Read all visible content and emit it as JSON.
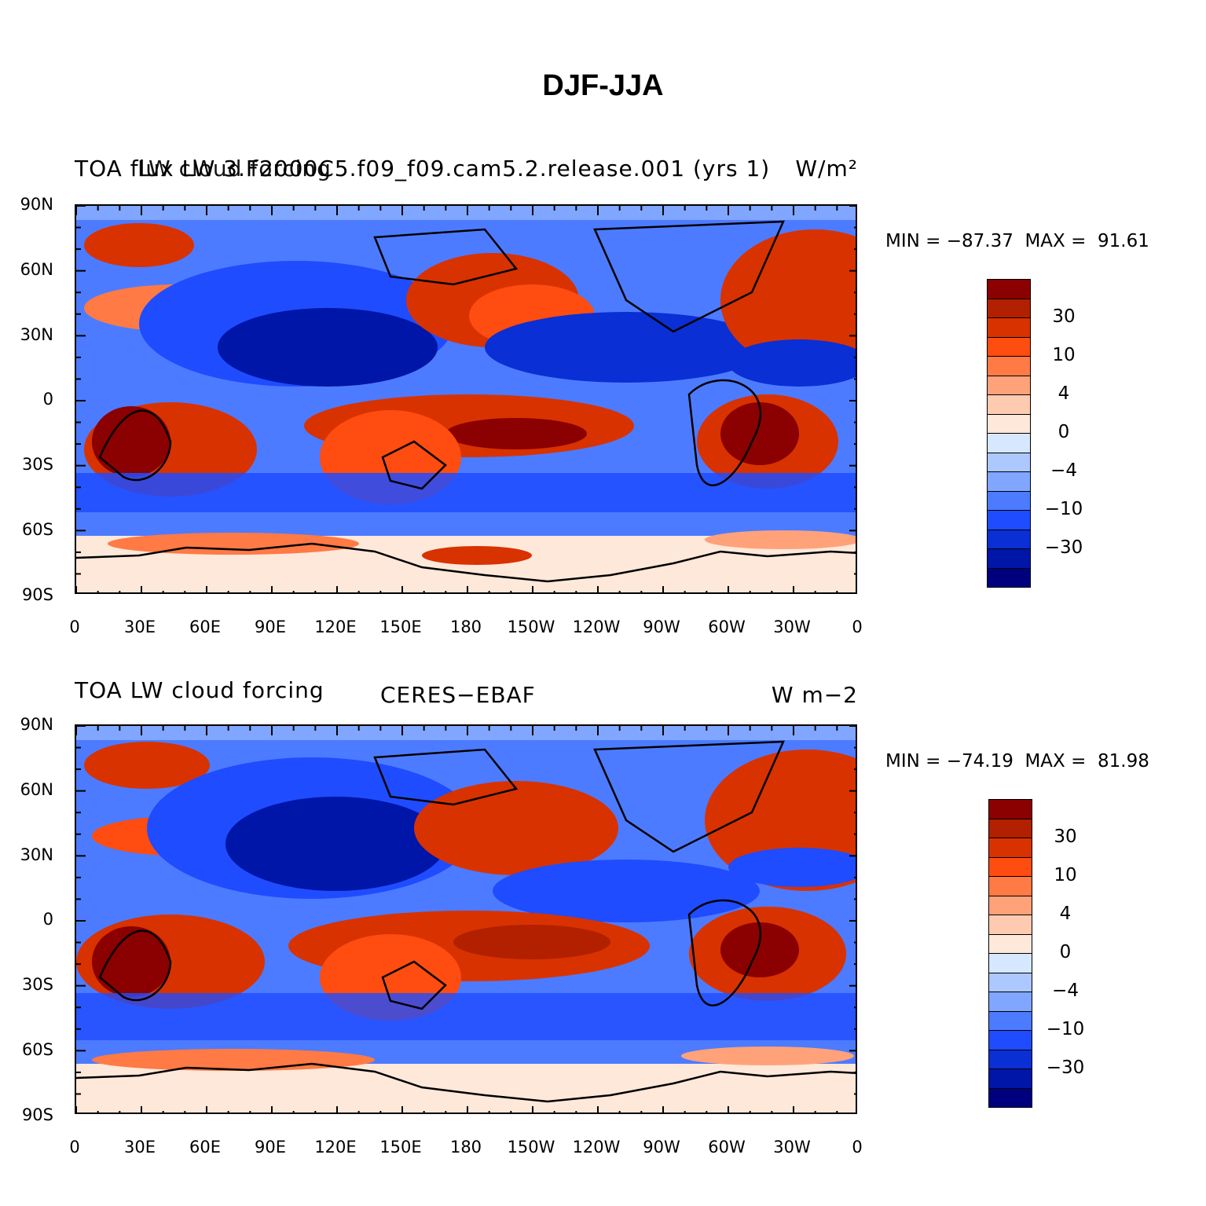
{
  "figure": {
    "title": "DJF-JJA"
  },
  "panels": [
    {
      "id": "model",
      "left_title": "TOA flux LW 3.F2000C5.f09_f09.cam5.2.release.001 (yrs 1)",
      "left_title_overlap": "LW cloud forcing",
      "center_title": "",
      "right_title": "W/m²",
      "stats_text": "MIN = −87.37  MAX =  91.61",
      "min": -87.37,
      "max": 91.61
    },
    {
      "id": "obs",
      "left_title": "TOA LW cloud forcing",
      "left_title_overlap": "",
      "center_title": "CERES−EBAF",
      "right_title": "W m−2",
      "stats_text": "MIN = −74.19  MAX =  81.98",
      "min": -74.19,
      "max": 81.98
    }
  ],
  "axes": {
    "y_labels": [
      "90N",
      "60N",
      "30N",
      "0",
      "30S",
      "60S",
      "90S"
    ],
    "x_labels": [
      "0",
      "30E",
      "60E",
      "90E",
      "120E",
      "150E",
      "180",
      "150W",
      "120W",
      "90W",
      "60W",
      "30W",
      "0"
    ]
  },
  "colorbar": {
    "colors": [
      "#8b0000",
      "#b22000",
      "#d83200",
      "#ff4c10",
      "#ff7a45",
      "#ffa27a",
      "#ffcbb0",
      "#fde8da",
      "#d6e8ff",
      "#adc8ff",
      "#80a6ff",
      "#4d7bff",
      "#1f4cff",
      "#0a2fd4",
      "#0016a8",
      "#00007f"
    ],
    "labels": [
      "30",
      "10",
      "4",
      "0",
      "−4",
      "−10",
      "−30"
    ]
  },
  "chart_data": {
    "type": "heatmap",
    "projection": "cylindrical equidistant, 0–360 longitude",
    "variable": "TOA LW cloud forcing, DJF minus JJA seasonal difference",
    "units": "W/m²",
    "contour_levels": [
      -50,
      -40,
      -30,
      -20,
      -10,
      -6,
      -4,
      -2,
      0,
      2,
      4,
      6,
      10,
      20,
      30,
      40,
      50
    ],
    "lat_range": [
      -90,
      90
    ],
    "lon_range": [
      0,
      360
    ],
    "panels": [
      {
        "name": "CAM5.2 model (F2000C5 f09_f09)",
        "min": -87.37,
        "max": 91.61
      },
      {
        "name": "CERES-EBAF observations",
        "min": -74.19,
        "max": 81.98
      }
    ]
  }
}
